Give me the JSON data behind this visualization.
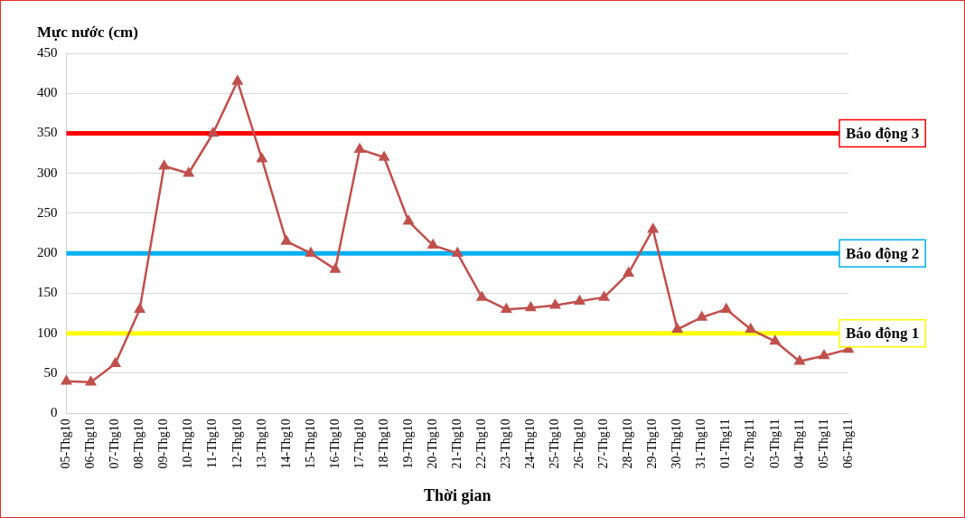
{
  "chart_data": {
    "type": "line",
    "ylabel": "Mực nước (cm)",
    "xlabel": "Thời gian",
    "categories": [
      "05-Thg10",
      "06-Thg10",
      "07-Thg10",
      "08-Thg10",
      "09-Thg10",
      "10-Thg10",
      "11-Thg10",
      "12-Thg10",
      "13-Thg10",
      "14-Thg10",
      "15-Thg10",
      "16-Thg10",
      "17-Thg10",
      "18-Thg10",
      "19-Thg10",
      "20-Thg10",
      "21-Thg10",
      "22-Thg10",
      "23-Thg10",
      "24-Thg10",
      "25-Thg10",
      "26-Thg10",
      "27-Thg10",
      "28-Thg10",
      "29-Thg10",
      "30-Thg10",
      "31-Thg10",
      "01-Thg11",
      "02-Thg11",
      "03-Thg11",
      "04-Thg11",
      "05-Thg11",
      "06-Thg11"
    ],
    "series": [
      {
        "color": "#c0504d",
        "values": [
          40,
          39,
          62,
          130,
          309,
          300,
          350,
          415,
          318,
          215,
          200,
          180,
          330,
          320,
          240,
          210,
          200,
          145,
          130,
          132,
          135,
          140,
          145,
          175,
          230,
          105,
          120,
          130,
          105,
          90,
          65,
          72,
          80
        ]
      }
    ],
    "ylim": [
      0,
      450
    ],
    "yticks": [
      0,
      50,
      100,
      150,
      200,
      250,
      300,
      350,
      400,
      450
    ],
    "grid": "y",
    "legend": false,
    "marker": "triangle",
    "line_style": "solid",
    "ref_lines": [
      {
        "axis": "y",
        "value": 350,
        "label": "Báo động 3",
        "color": "#ff0000"
      },
      {
        "axis": "y",
        "value": 200,
        "label": "Báo động 2",
        "color": "#00b0f0"
      },
      {
        "axis": "y",
        "value": 100,
        "label": "Báo động 1",
        "color": "#ffff00"
      }
    ]
  }
}
